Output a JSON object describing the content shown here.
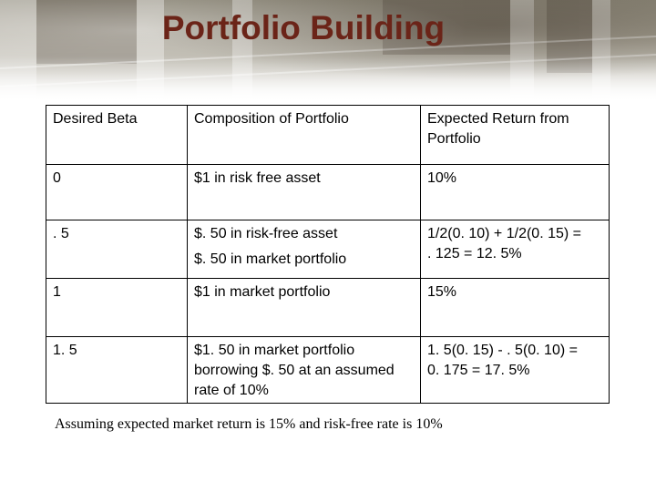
{
  "slide": {
    "title": "Portfolio Building",
    "banner_image": "new-york-stock-exchange-building-photo"
  },
  "table": {
    "headers": [
      "Desired Beta",
      "Composition of Portfolio",
      "Expected Return from Portfolio"
    ],
    "rows": [
      {
        "beta": "0",
        "composition": [
          "$1 in risk free asset"
        ],
        "expected_return": [
          "10%"
        ]
      },
      {
        "beta": ". 5",
        "composition": [
          "$. 50 in risk-free asset",
          "$. 50 in market portfolio"
        ],
        "expected_return": [
          "1/2(0. 10) + 1/2(0. 15) =",
          ". 125  = 12. 5%"
        ]
      },
      {
        "beta": "1",
        "composition": [
          "$1 in market portfolio"
        ],
        "expected_return": [
          "15%"
        ]
      },
      {
        "beta": "1. 5",
        "composition": [
          "$1. 50 in market portfolio",
          "borrowing $. 50 at an assumed",
          "rate of 10%"
        ],
        "expected_return": [
          "1. 5(0. 15) - . 5(0. 10) =",
          "0. 175  =  17. 5%"
        ]
      }
    ]
  },
  "footnote": "Assuming expected market return is 15% and risk-free rate is 10%"
}
